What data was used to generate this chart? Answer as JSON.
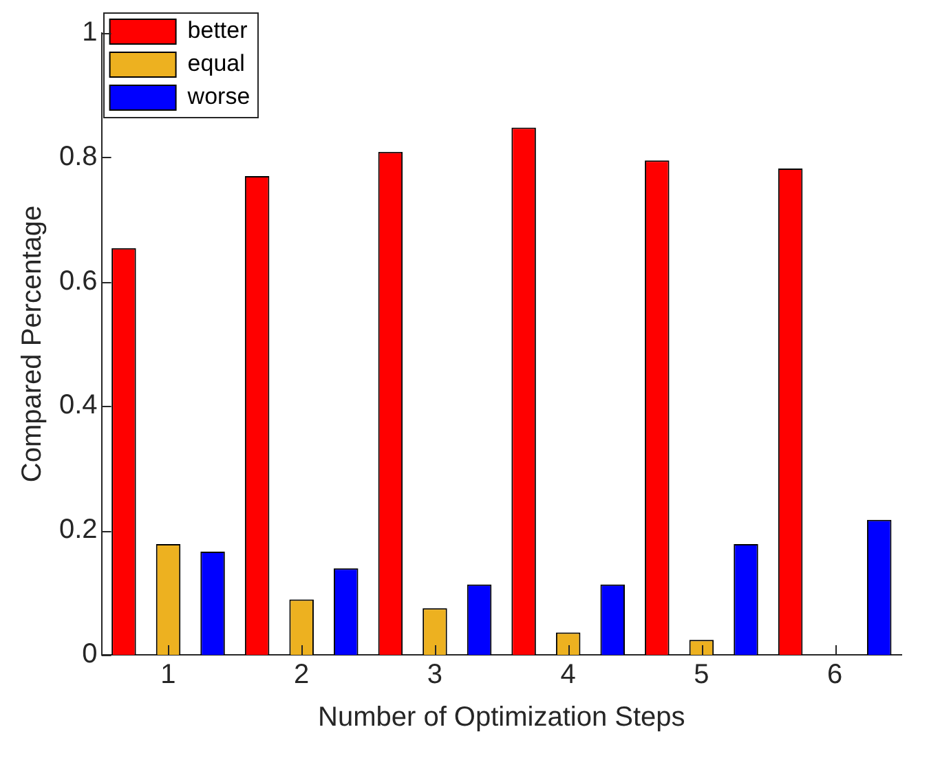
{
  "chart_data": {
    "type": "bar",
    "xlabel": "Number of Optimization Steps",
    "ylabel": "Compared Percentage",
    "categories": [
      "1",
      "2",
      "3",
      "4",
      "5",
      "6"
    ],
    "series": [
      {
        "name": "better",
        "color": "#ff0000",
        "values": [
          0.654,
          0.77,
          0.809,
          0.848,
          0.795,
          0.782
        ]
      },
      {
        "name": "equal",
        "color": "#edb120",
        "values": [
          0.178,
          0.089,
          0.075,
          0.036,
          0.024,
          0
        ]
      },
      {
        "name": "worse",
        "color": "#0000ff",
        "values": [
          0.166,
          0.139,
          0.113,
          0.113,
          0.178,
          0.217
        ]
      }
    ],
    "ylim": [
      0,
      1
    ],
    "yticks": [
      0,
      0.2,
      0.4,
      0.6,
      0.8,
      1
    ],
    "grid": false,
    "legend": "top left"
  }
}
